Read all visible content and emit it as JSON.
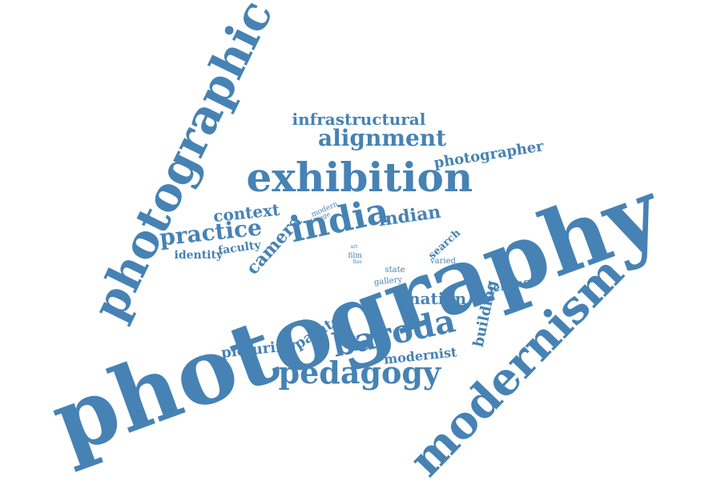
{
  "accent_color": "#4682b4",
  "background_color": "#ffffff",
  "words": [
    {
      "id": "photography",
      "text": "photography"
    },
    {
      "id": "photographic",
      "text": "photographic"
    },
    {
      "id": "modernism",
      "text": "modernism"
    },
    {
      "id": "exhibition",
      "text": "exhibition"
    },
    {
      "id": "infrastructural",
      "text": "infrastructural"
    },
    {
      "id": "alignment",
      "text": "alignment"
    },
    {
      "id": "photographer",
      "text": "photographer"
    },
    {
      "id": "india",
      "text": "india"
    },
    {
      "id": "indian",
      "text": "indian"
    },
    {
      "id": "context",
      "text": "context"
    },
    {
      "id": "practice",
      "text": "practice"
    },
    {
      "id": "camera",
      "text": "camera"
    },
    {
      "id": "faculty",
      "text": "faculty"
    },
    {
      "id": "identity",
      "text": "identity"
    },
    {
      "id": "modern",
      "text": "modern"
    },
    {
      "id": "image",
      "text": "image"
    },
    {
      "id": "search",
      "text": "search"
    },
    {
      "id": "varied",
      "text": "varied"
    },
    {
      "id": "film",
      "text": "film"
    },
    {
      "id": "art",
      "text": "art"
    },
    {
      "id": "fine",
      "text": "fine"
    },
    {
      "id": "state",
      "text": "state"
    },
    {
      "id": "gallery",
      "text": "gallery"
    },
    {
      "id": "nation",
      "text": "nation"
    },
    {
      "id": "jehangir",
      "text": "jehangir"
    },
    {
      "id": "building",
      "text": "building"
    },
    {
      "id": "baroda",
      "text": "baroda"
    },
    {
      "id": "painter",
      "text": "painter"
    },
    {
      "id": "picturing",
      "text": "picturing"
    },
    {
      "id": "modernist",
      "text": "modernist"
    },
    {
      "id": "pedagogy",
      "text": "pedagogy"
    }
  ]
}
